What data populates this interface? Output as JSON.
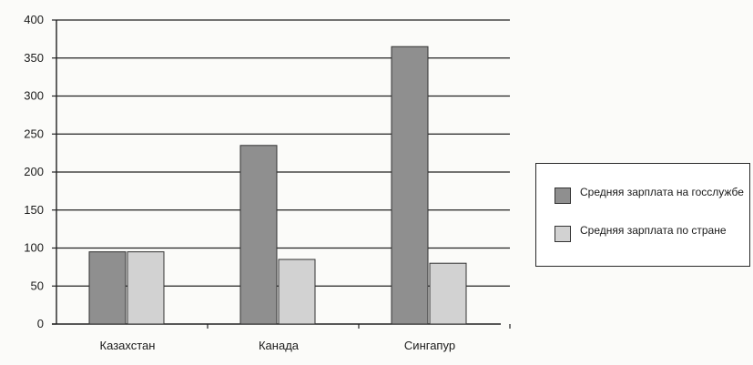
{
  "chart_data": {
    "type": "bar",
    "categories": [
      "Казахстан",
      "Канада",
      "Сингапур"
    ],
    "series": [
      {
        "name": "Средняя зарплата на госслужбе",
        "values": [
          95,
          235,
          365
        ],
        "color": "#8f8f8f"
      },
      {
        "name": "Средняя зарплата по стране",
        "values": [
          95,
          85,
          80
        ],
        "color": "#d2d2d2"
      }
    ],
    "ylim": [
      0,
      400
    ],
    "yticks": [
      0,
      50,
      100,
      150,
      200,
      250,
      300,
      350,
      400
    ],
    "grid": true,
    "legend_position": "right",
    "title": "",
    "xlabel": "",
    "ylabel": ""
  },
  "legend": {
    "items": [
      {
        "label": "Средняя зарплата на госслужбе",
        "color": "#8f8f8f"
      },
      {
        "label": "Средняя зарплата по стране",
        "color": "#d2d2d2"
      }
    ]
  }
}
